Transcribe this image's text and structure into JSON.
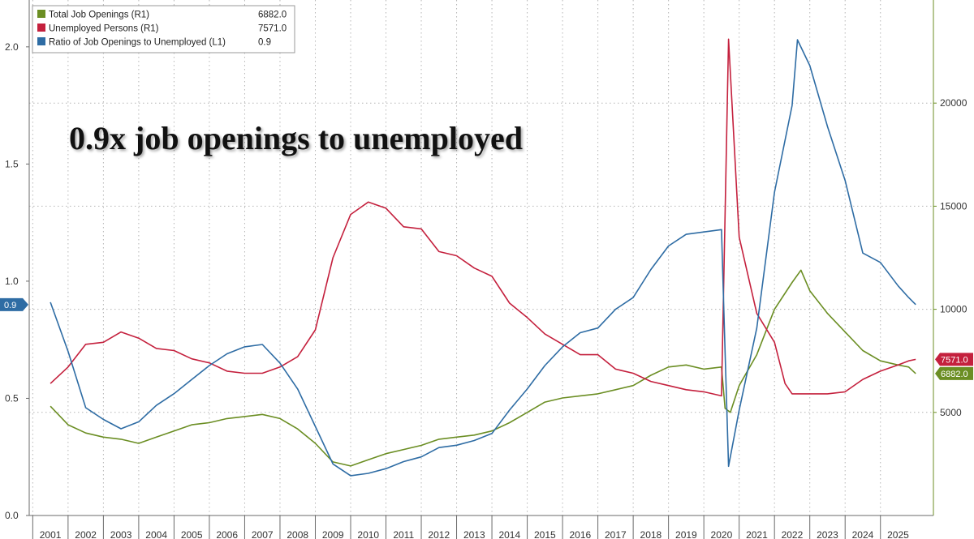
{
  "chart_data": {
    "type": "line",
    "annotation": "0.9x job openings to unemployed",
    "grid": true,
    "legend_position": "top-left",
    "x_ticks": [
      "2001",
      "2002",
      "2003",
      "2004",
      "2005",
      "2006",
      "2007",
      "2008",
      "2009",
      "2010",
      "2011",
      "2012",
      "2013",
      "2014",
      "2015",
      "2016",
      "2017",
      "2018",
      "2019",
      "2020",
      "2021",
      "2022",
      "2023",
      "2024",
      "2025"
    ],
    "left_axis": {
      "ticks": [
        "0.0",
        "0.5",
        "1.0",
        "1.5",
        "2.0"
      ],
      "ylim": [
        0,
        2.2
      ]
    },
    "right_axis": {
      "ticks": [
        "5000",
        "10000",
        "15000",
        "20000"
      ],
      "ylim": [
        0,
        25000
      ]
    },
    "series": [
      {
        "name": "Total Job Openings (R1)",
        "last_value": "6882.0",
        "axis": "right",
        "color": "#6b8e23",
        "points": [
          [
            2001.0,
            5300
          ],
          [
            2001.5,
            4400
          ],
          [
            2002.0,
            4000
          ],
          [
            2002.5,
            3800
          ],
          [
            2003.0,
            3700
          ],
          [
            2003.5,
            3500
          ],
          [
            2004.0,
            3800
          ],
          [
            2004.5,
            4100
          ],
          [
            2005.0,
            4400
          ],
          [
            2005.5,
            4500
          ],
          [
            2006.0,
            4700
          ],
          [
            2006.5,
            4800
          ],
          [
            2007.0,
            4900
          ],
          [
            2007.5,
            4700
          ],
          [
            2008.0,
            4200
          ],
          [
            2008.5,
            3500
          ],
          [
            2009.0,
            2600
          ],
          [
            2009.5,
            2400
          ],
          [
            2010.0,
            2700
          ],
          [
            2010.5,
            3000
          ],
          [
            2011.0,
            3200
          ],
          [
            2011.5,
            3400
          ],
          [
            2012.0,
            3700
          ],
          [
            2012.5,
            3800
          ],
          [
            2013.0,
            3900
          ],
          [
            2013.5,
            4100
          ],
          [
            2014.0,
            4500
          ],
          [
            2014.5,
            5000
          ],
          [
            2015.0,
            5500
          ],
          [
            2015.5,
            5700
          ],
          [
            2016.0,
            5800
          ],
          [
            2016.5,
            5900
          ],
          [
            2017.0,
            6100
          ],
          [
            2017.5,
            6300
          ],
          [
            2018.0,
            6800
          ],
          [
            2018.5,
            7200
          ],
          [
            2019.0,
            7300
          ],
          [
            2019.5,
            7100
          ],
          [
            2020.0,
            7200
          ],
          [
            2020.1,
            5200
          ],
          [
            2020.25,
            5000
          ],
          [
            2020.5,
            6300
          ],
          [
            2021.0,
            7800
          ],
          [
            2021.5,
            10000
          ],
          [
            2022.0,
            11300
          ],
          [
            2022.25,
            11900
          ],
          [
            2022.5,
            10900
          ],
          [
            2023.0,
            9800
          ],
          [
            2023.5,
            8900
          ],
          [
            2024.0,
            8000
          ],
          [
            2024.5,
            7500
          ],
          [
            2025.0,
            7300
          ],
          [
            2025.3,
            7200
          ],
          [
            2025.5,
            6882
          ]
        ]
      },
      {
        "name": "Unemployed Persons (R1)",
        "last_value": "7571.0",
        "axis": "right",
        "color": "#c4203d",
        "points": [
          [
            2001.0,
            6400
          ],
          [
            2001.5,
            7200
          ],
          [
            2002.0,
            8300
          ],
          [
            2002.5,
            8400
          ],
          [
            2003.0,
            8900
          ],
          [
            2003.5,
            8600
          ],
          [
            2004.0,
            8100
          ],
          [
            2004.5,
            8000
          ],
          [
            2005.0,
            7600
          ],
          [
            2005.5,
            7400
          ],
          [
            2006.0,
            7000
          ],
          [
            2006.5,
            6900
          ],
          [
            2007.0,
            6900
          ],
          [
            2007.5,
            7200
          ],
          [
            2008.0,
            7700
          ],
          [
            2008.5,
            9000
          ],
          [
            2009.0,
            12500
          ],
          [
            2009.5,
            14600
          ],
          [
            2010.0,
            15200
          ],
          [
            2010.5,
            14900
          ],
          [
            2011.0,
            14000
          ],
          [
            2011.5,
            13900
          ],
          [
            2012.0,
            12800
          ],
          [
            2012.5,
            12600
          ],
          [
            2013.0,
            12000
          ],
          [
            2013.5,
            11600
          ],
          [
            2014.0,
            10300
          ],
          [
            2014.5,
            9600
          ],
          [
            2015.0,
            8800
          ],
          [
            2015.5,
            8300
          ],
          [
            2016.0,
            7800
          ],
          [
            2016.5,
            7800
          ],
          [
            2017.0,
            7100
          ],
          [
            2017.5,
            6900
          ],
          [
            2018.0,
            6500
          ],
          [
            2018.5,
            6300
          ],
          [
            2019.0,
            6100
          ],
          [
            2019.5,
            6000
          ],
          [
            2020.0,
            5800
          ],
          [
            2020.2,
            23100
          ],
          [
            2020.5,
            13500
          ],
          [
            2021.0,
            9800
          ],
          [
            2021.5,
            8400
          ],
          [
            2021.8,
            6400
          ],
          [
            2022.0,
            5900
          ],
          [
            2022.5,
            5900
          ],
          [
            2023.0,
            5900
          ],
          [
            2023.5,
            6000
          ],
          [
            2024.0,
            6600
          ],
          [
            2024.5,
            7000
          ],
          [
            2025.0,
            7300
          ],
          [
            2025.3,
            7500
          ],
          [
            2025.5,
            7571
          ]
        ]
      },
      {
        "name": "Ratio of Job Openings to Unemployed (L1)",
        "last_value": "0.9",
        "axis": "left",
        "color": "#2e6ca4",
        "points": [
          [
            2001.0,
            0.91
          ],
          [
            2001.5,
            0.7
          ],
          [
            2002.0,
            0.46
          ],
          [
            2002.5,
            0.41
          ],
          [
            2003.0,
            0.37
          ],
          [
            2003.5,
            0.4
          ],
          [
            2004.0,
            0.47
          ],
          [
            2004.5,
            0.52
          ],
          [
            2005.0,
            0.58
          ],
          [
            2005.5,
            0.64
          ],
          [
            2006.0,
            0.69
          ],
          [
            2006.5,
            0.72
          ],
          [
            2007.0,
            0.73
          ],
          [
            2007.5,
            0.65
          ],
          [
            2008.0,
            0.54
          ],
          [
            2008.5,
            0.38
          ],
          [
            2009.0,
            0.22
          ],
          [
            2009.5,
            0.17
          ],
          [
            2010.0,
            0.18
          ],
          [
            2010.5,
            0.2
          ],
          [
            2011.0,
            0.23
          ],
          [
            2011.5,
            0.25
          ],
          [
            2012.0,
            0.29
          ],
          [
            2012.5,
            0.3
          ],
          [
            2013.0,
            0.32
          ],
          [
            2013.5,
            0.35
          ],
          [
            2014.0,
            0.45
          ],
          [
            2014.5,
            0.54
          ],
          [
            2015.0,
            0.64
          ],
          [
            2015.5,
            0.72
          ],
          [
            2016.0,
            0.78
          ],
          [
            2016.5,
            0.8
          ],
          [
            2017.0,
            0.88
          ],
          [
            2017.5,
            0.93
          ],
          [
            2018.0,
            1.05
          ],
          [
            2018.5,
            1.15
          ],
          [
            2019.0,
            1.2
          ],
          [
            2019.5,
            1.21
          ],
          [
            2020.0,
            1.22
          ],
          [
            2020.1,
            0.7
          ],
          [
            2020.2,
            0.21
          ],
          [
            2020.5,
            0.45
          ],
          [
            2021.0,
            0.8
          ],
          [
            2021.5,
            1.38
          ],
          [
            2022.0,
            1.75
          ],
          [
            2022.15,
            2.03
          ],
          [
            2022.5,
            1.92
          ],
          [
            2023.0,
            1.66
          ],
          [
            2023.5,
            1.43
          ],
          [
            2024.0,
            1.12
          ],
          [
            2024.5,
            1.08
          ],
          [
            2025.0,
            0.98
          ],
          [
            2025.3,
            0.93
          ],
          [
            2025.5,
            0.9
          ]
        ]
      }
    ]
  }
}
